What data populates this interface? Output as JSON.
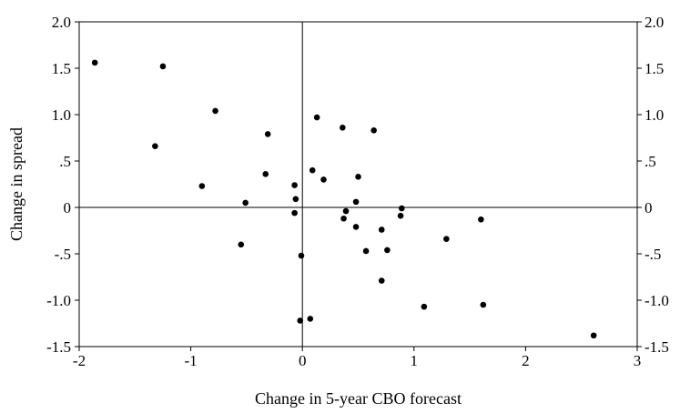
{
  "chart_data": {
    "type": "scatter",
    "title": "",
    "xlabel": "Change in 5-year CBO forecast",
    "ylabel": "Change in spread",
    "xlim": [
      -2,
      3
    ],
    "ylim": [
      -1.5,
      2.0
    ],
    "x_ticks": [
      -2,
      -1,
      0,
      1,
      2,
      3
    ],
    "x_tick_labels": [
      "-2",
      "-1",
      "0",
      "1",
      "2",
      "3"
    ],
    "y_ticks": [
      -1.5,
      -1.0,
      -0.5,
      0,
      0.5,
      1.0,
      1.5,
      2.0
    ],
    "y_tick_labels": [
      "-1.5",
      "-1.0",
      "-.5",
      "0",
      ".5",
      "1.0",
      "1.5",
      "2.0"
    ],
    "right_axis_labels": true,
    "zero_lines": true,
    "grid": false,
    "marker_color": "#000000",
    "series": [
      {
        "points": [
          {
            "x": -1.86,
            "y": 1.56
          },
          {
            "x": -1.25,
            "y": 1.52
          },
          {
            "x": -0.78,
            "y": 1.04
          },
          {
            "x": -1.32,
            "y": 0.66
          },
          {
            "x": -0.31,
            "y": 0.79
          },
          {
            "x": -0.9,
            "y": 0.23
          },
          {
            "x": -0.33,
            "y": 0.36
          },
          {
            "x": -0.51,
            "y": 0.05
          },
          {
            "x": -0.07,
            "y": 0.24
          },
          {
            "x": -0.06,
            "y": 0.09
          },
          {
            "x": -0.07,
            "y": -0.06
          },
          {
            "x": -0.55,
            "y": -0.4
          },
          {
            "x": -0.01,
            "y": -0.52
          },
          {
            "x": 0.13,
            "y": 0.97
          },
          {
            "x": 0.36,
            "y": 0.86
          },
          {
            "x": 0.64,
            "y": 0.83
          },
          {
            "x": 0.09,
            "y": 0.4
          },
          {
            "x": 0.19,
            "y": 0.3
          },
          {
            "x": 0.5,
            "y": 0.33
          },
          {
            "x": 0.48,
            "y": 0.06
          },
          {
            "x": 0.39,
            "y": -0.04
          },
          {
            "x": 0.37,
            "y": -0.12
          },
          {
            "x": 0.48,
            "y": -0.21
          },
          {
            "x": 0.71,
            "y": -0.24
          },
          {
            "x": 0.57,
            "y": -0.47
          },
          {
            "x": 0.76,
            "y": -0.46
          },
          {
            "x": 0.71,
            "y": -0.79
          },
          {
            "x": 0.89,
            "y": -0.01
          },
          {
            "x": 0.88,
            "y": -0.09
          },
          {
            "x": 1.29,
            "y": -0.34
          },
          {
            "x": 1.6,
            "y": -0.13
          },
          {
            "x": 1.09,
            "y": -1.07
          },
          {
            "x": 1.62,
            "y": -1.05
          },
          {
            "x": 0.07,
            "y": -1.2
          },
          {
            "x": -0.02,
            "y": -1.22
          },
          {
            "x": 2.61,
            "y": -1.38
          }
        ]
      }
    ]
  }
}
